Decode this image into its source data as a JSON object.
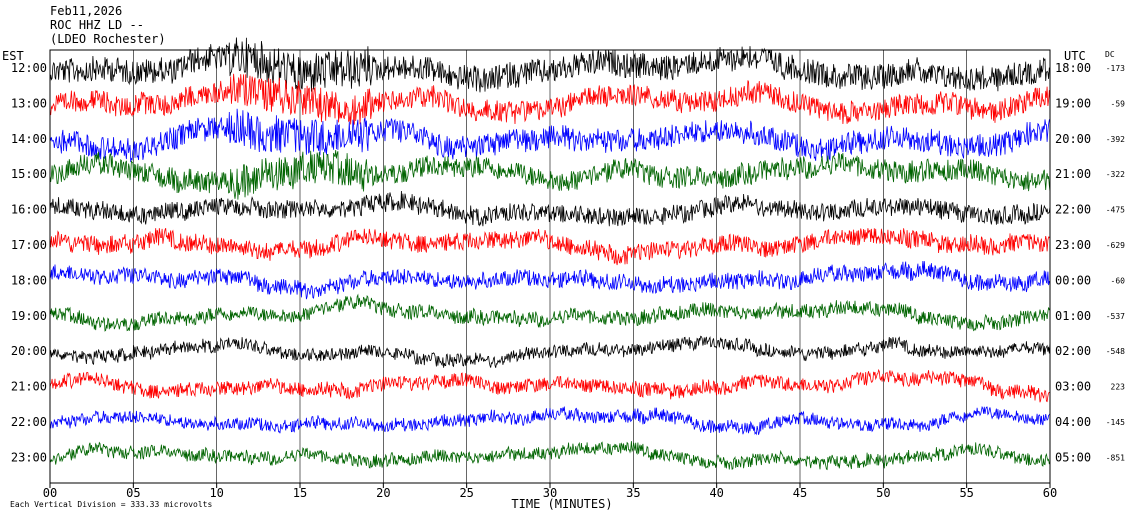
{
  "header": {
    "date": "Feb11,2026",
    "station": "ROC HHZ LD --",
    "location": "(LDEO Rochester)"
  },
  "chart_data": {
    "type": "line",
    "title": "Feb11,2026",
    "left_label": "EST",
    "right_label": "UTC",
    "dc_label": "DC",
    "xlabel": "TIME (MINUTES)",
    "xticks": [
      "00",
      "05",
      "10",
      "15",
      "20",
      "25",
      "30",
      "35",
      "40",
      "45",
      "50",
      "55",
      "60"
    ],
    "xlim": [
      0,
      60
    ],
    "rows": [
      {
        "est": "12:00",
        "utc": "18:00",
        "dc": "-173",
        "color": "#000000",
        "amp": 1.4
      },
      {
        "est": "13:00",
        "utc": "19:00",
        "dc": "-59",
        "color": "#ff0000",
        "amp": 1.2
      },
      {
        "est": "14:00",
        "utc": "20:00",
        "dc": "-392",
        "color": "#0000ff",
        "amp": 1.3
      },
      {
        "est": "15:00",
        "utc": "21:00",
        "dc": "-322",
        "color": "#006400",
        "amp": 1.2
      },
      {
        "est": "16:00",
        "utc": "22:00",
        "dc": "-475",
        "color": "#000000",
        "amp": 1.0
      },
      {
        "est": "17:00",
        "utc": "23:00",
        "dc": "-629",
        "color": "#ff0000",
        "amp": 1.0
      },
      {
        "est": "18:00",
        "utc": "00:00",
        "dc": "-60",
        "color": "#0000ff",
        "amp": 0.9
      },
      {
        "est": "19:00",
        "utc": "01:00",
        "dc": "-537",
        "color": "#006400",
        "amp": 0.8
      },
      {
        "est": "20:00",
        "utc": "02:00",
        "dc": "-548",
        "color": "#000000",
        "amp": 0.7
      },
      {
        "est": "21:00",
        "utc": "03:00",
        "dc": "223",
        "color": "#ff0000",
        "amp": 0.8
      },
      {
        "est": "22:00",
        "utc": "04:00",
        "dc": "-145",
        "color": "#0000ff",
        "amp": 0.7
      },
      {
        "est": "23:00",
        "utc": "05:00",
        "dc": "-851",
        "color": "#006400",
        "amp": 0.7
      }
    ],
    "footer": "Each Vertical Division = 333.33 microvolts",
    "grid": true
  }
}
